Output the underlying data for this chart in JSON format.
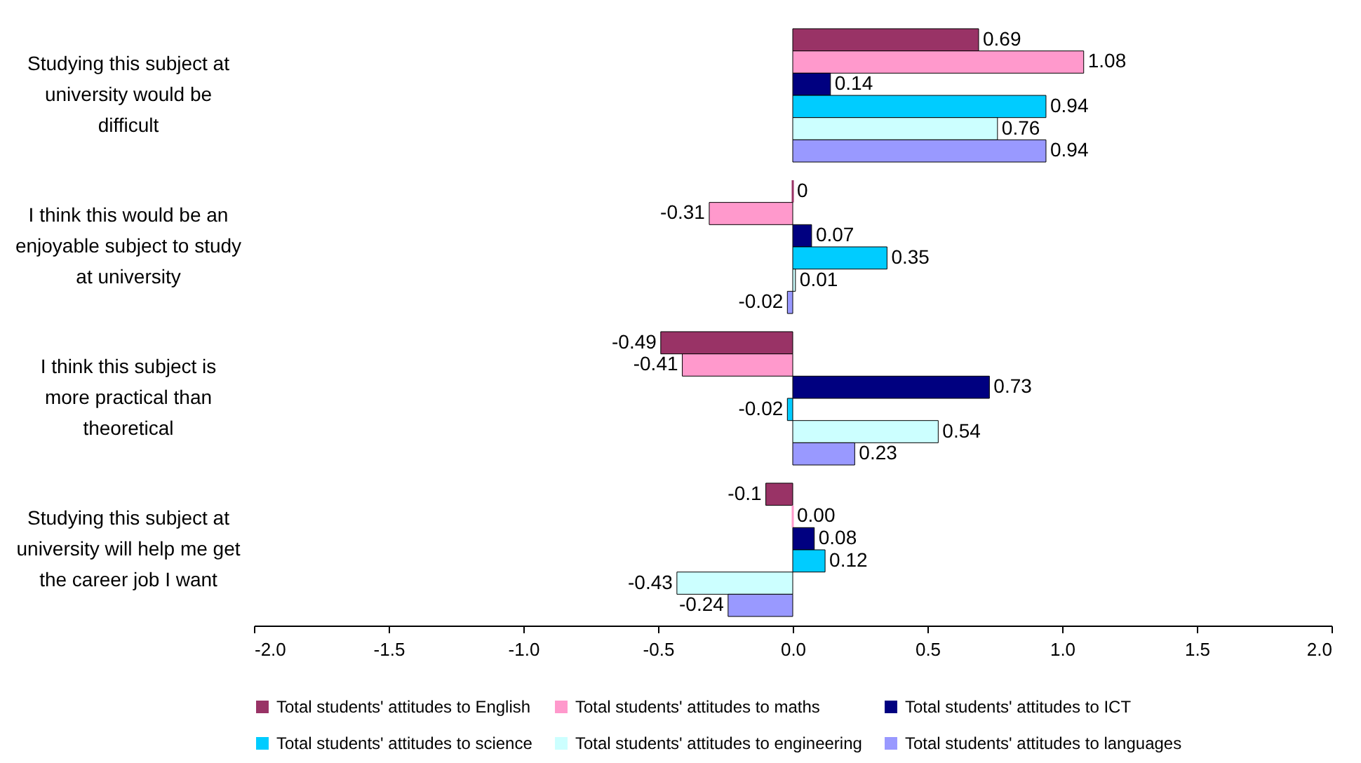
{
  "chart_data": {
    "type": "bar",
    "orientation": "horizontal",
    "categories": [
      "Studying this subject at university would be difficult",
      "I think this would be an enjoyable subject to study at university",
      "I think this subject is more practical than theoretical",
      "Studying this subject at university will help me get the career job I want"
    ],
    "series": [
      {
        "name": "Total students' attitudes to English",
        "color": "#993366",
        "values": [
          0.69,
          0,
          -0.49,
          -0.1
        ],
        "value_labels": [
          "0.69",
          "0",
          "-0.49",
          "-0.1"
        ]
      },
      {
        "name": "Total students' attitudes to maths",
        "color": "#ff99cc",
        "values": [
          1.08,
          -0.31,
          -0.41,
          0
        ],
        "value_labels": [
          "1.08",
          "-0.31",
          "-0.41",
          "0.00"
        ]
      },
      {
        "name": "Total students' attitudes to ICT",
        "color": "#000080",
        "values": [
          0.14,
          0.07,
          0.73,
          0.08
        ],
        "value_labels": [
          "0.14",
          "0.07",
          "0.73",
          "0.08"
        ]
      },
      {
        "name": "Total students' attitudes to science",
        "color": "#00ccff",
        "values": [
          0.94,
          0.35,
          -0.02,
          0.12
        ],
        "value_labels": [
          "0.94",
          "0.35",
          "-0.02",
          "0.12"
        ]
      },
      {
        "name": "Total students' attitudes to engineering",
        "color": "#ccffff",
        "values": [
          0.76,
          0.01,
          0.54,
          -0.43
        ],
        "value_labels": [
          "0.76",
          "0.01",
          "0.54",
          "-0.43"
        ]
      },
      {
        "name": "Total students' attitudes to languages",
        "color": "#9999ff",
        "values": [
          0.94,
          -0.02,
          0.23,
          -0.24
        ],
        "value_labels": [
          "0.94",
          "-0.02",
          "0.23",
          "-0.24"
        ]
      }
    ],
    "xlim": [
      -2.0,
      2.0
    ],
    "xticks": [
      {
        "value": -2,
        "label": "-2.0"
      },
      {
        "value": -1.5,
        "label": "-1.5"
      },
      {
        "value": -1,
        "label": "-1.0"
      },
      {
        "value": -0.5,
        "label": "-0.5"
      },
      {
        "value": 0,
        "label": "0.0"
      },
      {
        "value": 0.5,
        "label": "0.5"
      },
      {
        "value": 1,
        "label": "1.0"
      },
      {
        "value": 1.5,
        "label": "1.5"
      },
      {
        "value": 2,
        "label": "2.0"
      }
    ],
    "grid": false,
    "legend": "bottom"
  }
}
